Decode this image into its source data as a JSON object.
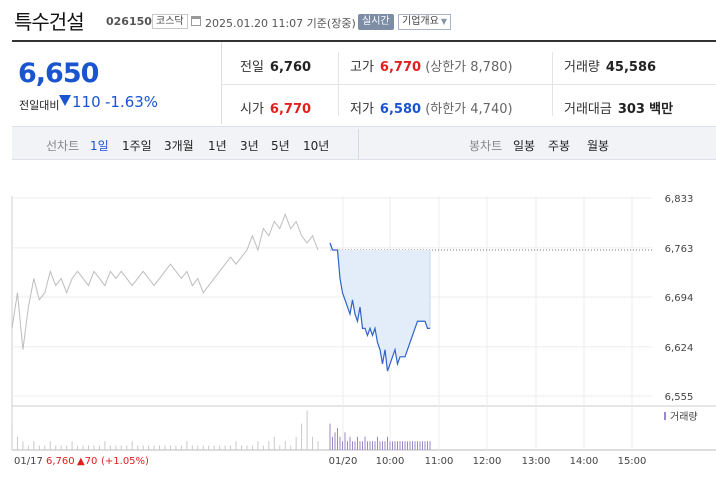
{
  "header": {
    "stock_name": "특수건설",
    "stock_code": "026150",
    "market": "코스닥",
    "datetime": "2025.01.20 11:07 기준(장중)",
    "realtime_label": "실시간",
    "company_info_label": "기업개요"
  },
  "price": {
    "current": "6,650",
    "change_label": "전일대비",
    "change_value": "110",
    "change_pct": "-1.63%"
  },
  "stats": {
    "prev_close_label": "전일",
    "prev_close": "6,760",
    "high_label": "고가",
    "high": "6,770",
    "upper_limit_label": "(상한가",
    "upper_limit": "8,780)",
    "volume_label": "거래량",
    "volume": "45,586",
    "open_label": "시가",
    "open": "6,770",
    "low_label": "저가",
    "low": "6,580",
    "lower_limit_label": "(하한가",
    "lower_limit": "4,740)",
    "trade_value_label": "거래대금",
    "trade_value": "303",
    "trade_value_unit": "백만"
  },
  "line_chart_bar": {
    "label": "선차트",
    "periods": [
      "1일",
      "1주일",
      "3개월",
      "1년",
      "3년",
      "5년",
      "10년"
    ],
    "active": "1일"
  },
  "candle_chart_bar": {
    "label": "봉차트",
    "periods": [
      "일봉",
      "주봉",
      "월봉"
    ]
  },
  "chart_data": {
    "type": "line",
    "y_ticks": [
      "6,833",
      "6,763",
      "6,694",
      "6,624",
      "6,555"
    ],
    "ylim": [
      6555,
      6833
    ],
    "reference_line": 6760,
    "x_ticks": [
      "01/20",
      "10:00",
      "11:00",
      "12:00",
      "13:00",
      "14:00",
      "15:00"
    ],
    "volume_legend": "거래량",
    "prev_day": {
      "date": "01/17",
      "close": "6,760",
      "change": "▲70",
      "change_pct": "(+1.05%)",
      "values": [
        6650,
        6700,
        6620,
        6680,
        6720,
        6690,
        6700,
        6730,
        6710,
        6720,
        6700,
        6720,
        6730,
        6720,
        6710,
        6730,
        6720,
        6710,
        6730,
        6720,
        6730,
        6720,
        6710,
        6720,
        6730,
        6720,
        6710,
        6720,
        6730,
        6740,
        6730,
        6720,
        6730,
        6710,
        6720,
        6700,
        6710,
        6720,
        6730,
        6740,
        6750,
        6740,
        6750,
        6760,
        6780,
        6760,
        6790,
        6780,
        6800,
        6790,
        6810,
        6790,
        6800,
        6780,
        6770,
        6780,
        6760
      ],
      "volumes": [
        6,
        3,
        2,
        1,
        2,
        1,
        1,
        2,
        1,
        1,
        1,
        2,
        1,
        1,
        1,
        1,
        1,
        2,
        1,
        1,
        1,
        1,
        2,
        1,
        1,
        1,
        1,
        1,
        1,
        1,
        1,
        1,
        2,
        1,
        1,
        1,
        1,
        1,
        1,
        1,
        1,
        2,
        1,
        1,
        1,
        2,
        1,
        2,
        3,
        1,
        2,
        1,
        3,
        6,
        9,
        3,
        2
      ]
    },
    "today": {
      "values": [
        6770,
        6760,
        6760,
        6760,
        6720,
        6700,
        6690,
        6680,
        6670,
        6690,
        6670,
        6660,
        6680,
        6650,
        6650,
        6640,
        6650,
        6640,
        6650,
        6630,
        6620,
        6600,
        6620,
        6590,
        6600,
        6610,
        6620,
        6600,
        6610,
        6610,
        6610,
        6620,
        6630,
        6640,
        6650,
        6660,
        6660,
        6660,
        6660,
        6650,
        6650
      ],
      "volumes": [
        6,
        3,
        4,
        5,
        3,
        2,
        4,
        2,
        3,
        2,
        2,
        3,
        2,
        2,
        3,
        2,
        2,
        2,
        2,
        3,
        2,
        2,
        2,
        3,
        2,
        2,
        2,
        2,
        2,
        2,
        2,
        2,
        2,
        2,
        2,
        2,
        2,
        2,
        2,
        2,
        2
      ]
    }
  }
}
